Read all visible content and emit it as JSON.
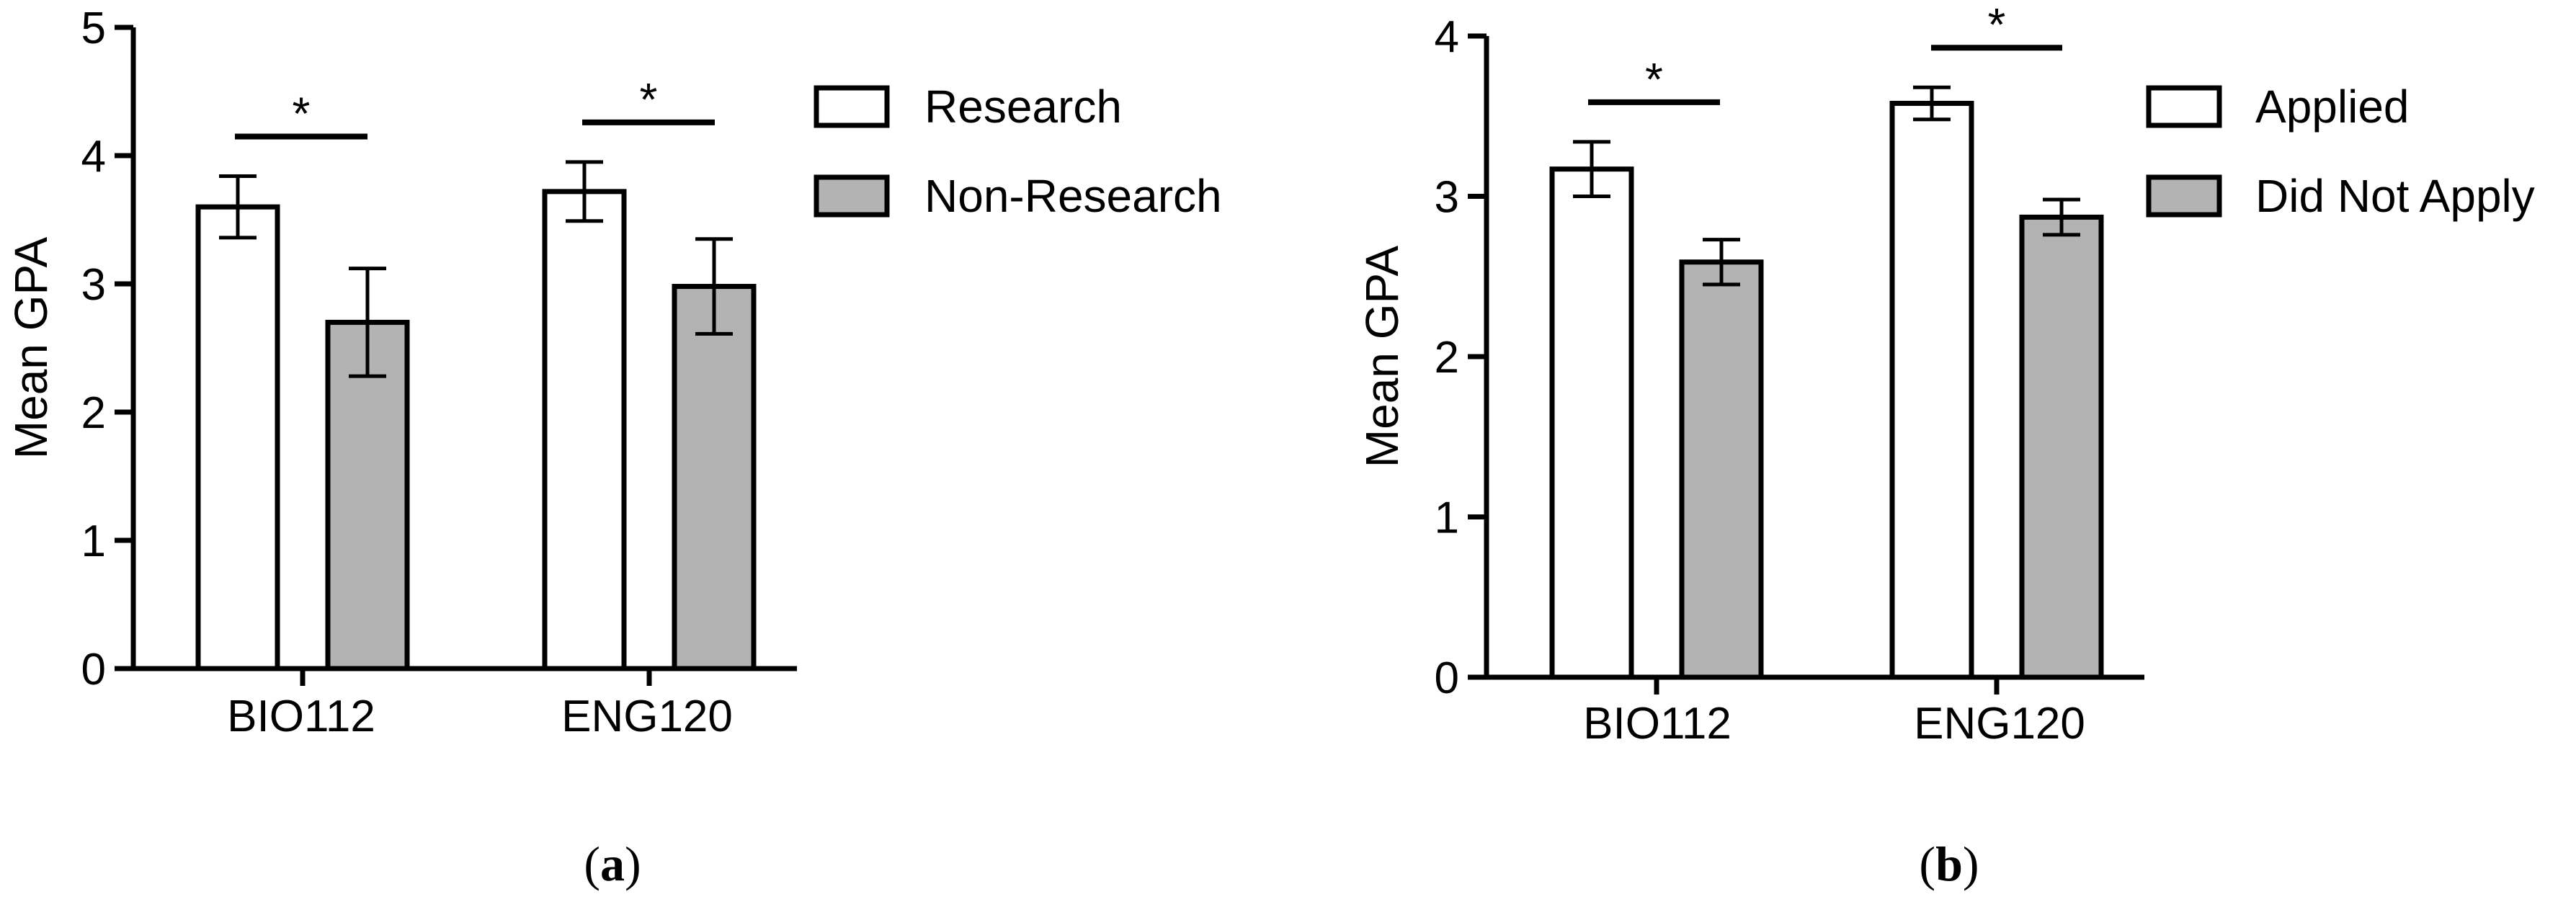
{
  "chart_data": [
    {
      "type": "bar",
      "panel_label": "a",
      "categories": [
        "BIO112",
        "ENG120"
      ],
      "series": [
        {
          "name": "Research",
          "values": [
            3.6,
            3.72
          ],
          "error": [
            0.24,
            0.23
          ],
          "color": "#ffffff"
        },
        {
          "name": "Non-Research",
          "values": [
            2.7,
            2.98
          ],
          "error": [
            0.42,
            0.37
          ],
          "color": "#b3b3b3"
        }
      ],
      "significance": [
        "*",
        "*"
      ],
      "ylabel": "Mean GPA",
      "ylim": [
        0,
        5
      ],
      "yticks": [
        "0",
        "1",
        "2",
        "3",
        "4",
        "5"
      ],
      "grid": false,
      "legend_position": "right"
    },
    {
      "type": "bar",
      "panel_label": "b",
      "categories": [
        "BIO112",
        "ENG120"
      ],
      "series": [
        {
          "name": "Applied",
          "values": [
            3.17,
            3.58
          ],
          "error": [
            0.17,
            0.1
          ],
          "color": "#ffffff"
        },
        {
          "name": "Did Not Apply",
          "values": [
            2.59,
            2.87
          ],
          "error": [
            0.14,
            0.11
          ],
          "color": "#b3b3b3"
        }
      ],
      "significance": [
        "*",
        "*"
      ],
      "ylabel": "Mean GPA",
      "ylim": [
        0,
        4
      ],
      "yticks": [
        "0",
        "1",
        "2",
        "3",
        "4"
      ],
      "grid": false,
      "legend_position": "right"
    }
  ]
}
